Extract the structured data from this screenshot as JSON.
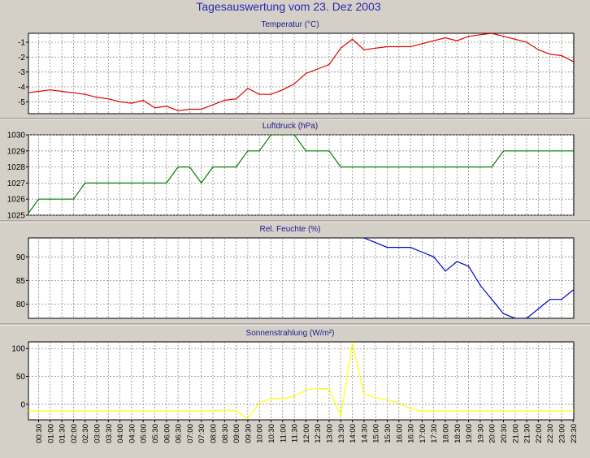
{
  "page_title": "Tagesauswertung vom 23. Dez 2003",
  "colors": {
    "background": "#d4d0c8",
    "plot_background": "#ffffff",
    "grid": "#8a8a8a",
    "title": "#2a2ab0"
  },
  "chart_data": [
    {
      "type": "line",
      "title": "Temperatur (°C)",
      "color": "#e00000",
      "ylim": [
        -5.8,
        -0.4
      ],
      "yticks": [
        -5,
        -4,
        -3,
        -2,
        -1
      ],
      "grid": true,
      "x": [
        "00:00",
        "00:30",
        "01:00",
        "01:30",
        "02:00",
        "02:30",
        "03:00",
        "03:30",
        "04:00",
        "04:30",
        "05:00",
        "05:30",
        "06:00",
        "06:30",
        "07:00",
        "07:30",
        "08:00",
        "08:30",
        "09:00",
        "09:30",
        "10:00",
        "10:30",
        "11:00",
        "11:30",
        "12:00",
        "12:30",
        "13:00",
        "13:30",
        "14:00",
        "14:30",
        "15:00",
        "15:30",
        "16:00",
        "16:30",
        "17:00",
        "17:30",
        "18:00",
        "18:30",
        "19:00",
        "19:30",
        "20:00",
        "20:30",
        "21:00",
        "21:30",
        "22:00",
        "22:30",
        "23:00",
        "23:30"
      ],
      "values": [
        -4.4,
        -4.3,
        -4.2,
        -4.3,
        -4.4,
        -4.5,
        -4.7,
        -4.8,
        -5.0,
        -5.1,
        -4.9,
        -5.4,
        -5.3,
        -5.6,
        -5.5,
        -5.5,
        -5.2,
        -4.9,
        -4.8,
        -4.1,
        -4.5,
        -4.5,
        -4.2,
        -3.8,
        -3.1,
        -2.8,
        -2.5,
        -1.4,
        -0.8,
        -1.5,
        -1.4,
        -1.3,
        -1.3,
        -1.3,
        -1.1,
        -0.9,
        -0.7,
        -0.9,
        -0.6,
        -0.5,
        -0.4,
        -0.6,
        -0.8,
        -1.0,
        -1.5,
        -1.8,
        -1.9,
        -2.3
      ]
    },
    {
      "type": "line",
      "title": "Luftdruck (hPa)",
      "color": "#008000",
      "ylim": [
        1025,
        1030
      ],
      "yticks": [
        1025,
        1026,
        1027,
        1028,
        1029,
        1030
      ],
      "grid": true,
      "x": [
        "00:00",
        "00:30",
        "01:00",
        "01:30",
        "02:00",
        "02:30",
        "03:00",
        "03:30",
        "04:00",
        "04:30",
        "05:00",
        "05:30",
        "06:00",
        "06:30",
        "07:00",
        "07:30",
        "08:00",
        "08:30",
        "09:00",
        "09:30",
        "10:00",
        "10:30",
        "11:00",
        "11:30",
        "12:00",
        "12:30",
        "13:00",
        "13:30",
        "14:00",
        "14:30",
        "15:00",
        "15:30",
        "16:00",
        "16:30",
        "17:00",
        "17:30",
        "18:00",
        "18:30",
        "19:00",
        "19:30",
        "20:00",
        "20:30",
        "21:00",
        "21:30",
        "22:00",
        "22:30",
        "23:00",
        "23:30"
      ],
      "values": [
        1025,
        1026,
        1026,
        1026,
        1026,
        1027,
        1027,
        1027,
        1027,
        1027,
        1027,
        1027,
        1027,
        1028,
        1028,
        1027,
        1028,
        1028,
        1028,
        1029,
        1029,
        1030,
        1030,
        1030,
        1029,
        1029,
        1029,
        1028,
        1028,
        1028,
        1028,
        1028,
        1028,
        1028,
        1028,
        1028,
        1028,
        1028,
        1028,
        1028,
        1028,
        1029,
        1029,
        1029,
        1029,
        1029,
        1029,
        1029
      ]
    },
    {
      "type": "line",
      "title": "Rel. Feuchte (%)",
      "color": "#0000d0",
      "ylim": [
        77,
        94
      ],
      "yticks": [
        80,
        85,
        90
      ],
      "grid": true,
      "x": [
        "14:30",
        "15:00",
        "15:30",
        "16:00",
        "16:30",
        "17:00",
        "17:30",
        "18:00",
        "18:30",
        "19:00",
        "19:30",
        "20:00",
        "20:30",
        "21:00",
        "21:30",
        "22:00",
        "22:30",
        "23:00",
        "23:30"
      ],
      "values": [
        94,
        93,
        92,
        92,
        92,
        91,
        90,
        87,
        89,
        88,
        84,
        81,
        78,
        77,
        77,
        79,
        81,
        81,
        83
      ]
    },
    {
      "type": "line",
      "title": "Sonnenstrahlung (W/m²)",
      "color": "#ffff00",
      "ylim": [
        -28,
        112
      ],
      "yticks": [
        0,
        50,
        100
      ],
      "grid": true,
      "x": [
        "00:00",
        "00:30",
        "01:00",
        "01:30",
        "02:00",
        "02:30",
        "03:00",
        "03:30",
        "04:00",
        "04:30",
        "05:00",
        "05:30",
        "06:00",
        "06:30",
        "07:00",
        "07:30",
        "08:00",
        "08:30",
        "09:00",
        "09:30",
        "10:00",
        "10:30",
        "11:00",
        "11:30",
        "12:00",
        "12:30",
        "13:00",
        "13:30",
        "14:00",
        "14:30",
        "15:00",
        "15:30",
        "16:00",
        "16:30",
        "17:00",
        "17:30",
        "18:00",
        "18:30",
        "19:00",
        "19:30",
        "20:00",
        "20:30",
        "21:00",
        "21:30",
        "22:00",
        "22:30",
        "23:00",
        "23:30"
      ],
      "values": [
        -12,
        -12,
        -12,
        -12,
        -12,
        -12,
        -12,
        -12,
        -12,
        -12,
        -12,
        -12,
        -12,
        -12,
        -12,
        -12,
        -12,
        -10,
        -12,
        -26,
        2,
        10,
        10,
        14,
        26,
        28,
        28,
        -22,
        110,
        18,
        12,
        8,
        2,
        -8,
        -12,
        -12,
        -12,
        -12,
        -12,
        -12,
        -12,
        -12,
        -12,
        -12,
        -12,
        -12,
        -12,
        -12
      ]
    }
  ],
  "x_axis_labels": [
    "00:30",
    "01:00",
    "01:30",
    "02:00",
    "02:30",
    "03:00",
    "03:30",
    "04:00",
    "04:30",
    "05:00",
    "05:30",
    "06:00",
    "06:30",
    "07:00",
    "07:30",
    "08:00",
    "08:30",
    "09:00",
    "09:30",
    "10:00",
    "10:30",
    "11:00",
    "11:30",
    "12:00",
    "12:30",
    "13:00",
    "13:30",
    "14:00",
    "14:30",
    "15:00",
    "15:30",
    "16:00",
    "16:30",
    "17:00",
    "17:30",
    "18:00",
    "18:30",
    "19:00",
    "19:30",
    "20:00",
    "20:30",
    "21:00",
    "21:30",
    "22:00",
    "22:30",
    "23:00",
    "23:30"
  ]
}
